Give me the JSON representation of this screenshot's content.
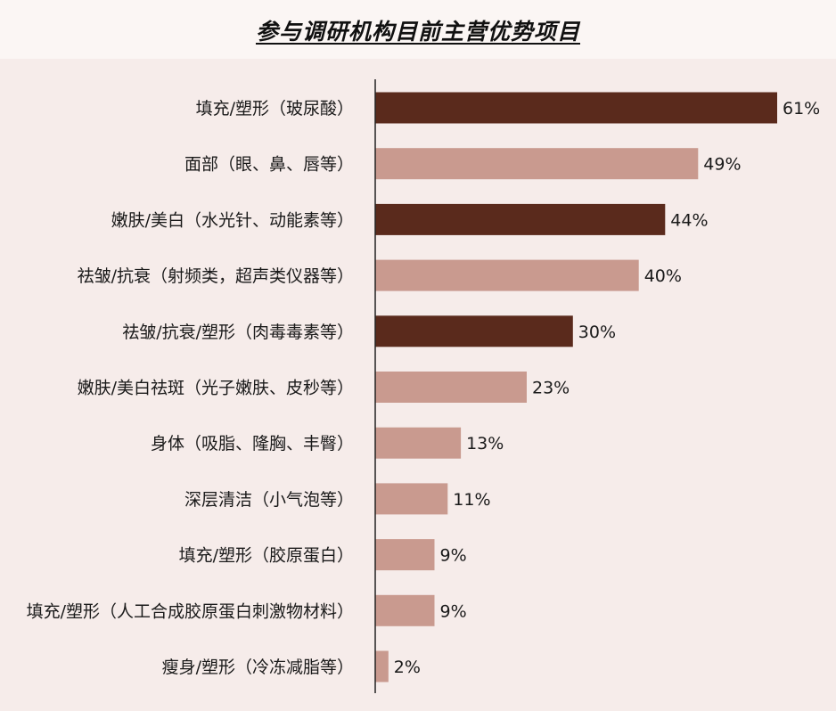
{
  "chart_data": {
    "type": "bar",
    "orientation": "horizontal",
    "title": "参与调研机构目前主营优势项目",
    "categories": [
      "填充/塑形（玻尿酸）",
      "面部（眼、鼻、唇等）",
      "嫩肤/美白（水光针、动能素等）",
      "祛皱/抗衰（射频类，超声类仪器等）",
      "祛皱/抗衰/塑形（肉毒毒素等）",
      "嫩肤/美白祛斑（光子嫩肤、皮秒等）",
      "身体（吸脂、隆胸、丰臀）",
      "深层清洁（小气泡等）",
      "填充/塑形（胶原蛋白）",
      "填充/塑形（人工合成胶原蛋白刺激物材料）",
      "瘦身/塑形（冷冻减脂等）"
    ],
    "values": [
      61,
      49,
      44,
      40,
      30,
      23,
      13,
      11,
      9,
      9,
      2
    ],
    "value_labels": [
      "61%",
      "49%",
      "44%",
      "40%",
      "30%",
      "23%",
      "13%",
      "11%",
      "9%",
      "9%",
      "2%"
    ],
    "highlighted": [
      true,
      false,
      true,
      false,
      true,
      false,
      false,
      false,
      false,
      false,
      false
    ],
    "xlim": [
      0,
      61
    ],
    "grid": false,
    "legend": "none",
    "colors": {
      "highlight": "#5a2a1c",
      "normal": "#c99a8f",
      "axis": "#222222",
      "background": "#f6ecea"
    }
  }
}
